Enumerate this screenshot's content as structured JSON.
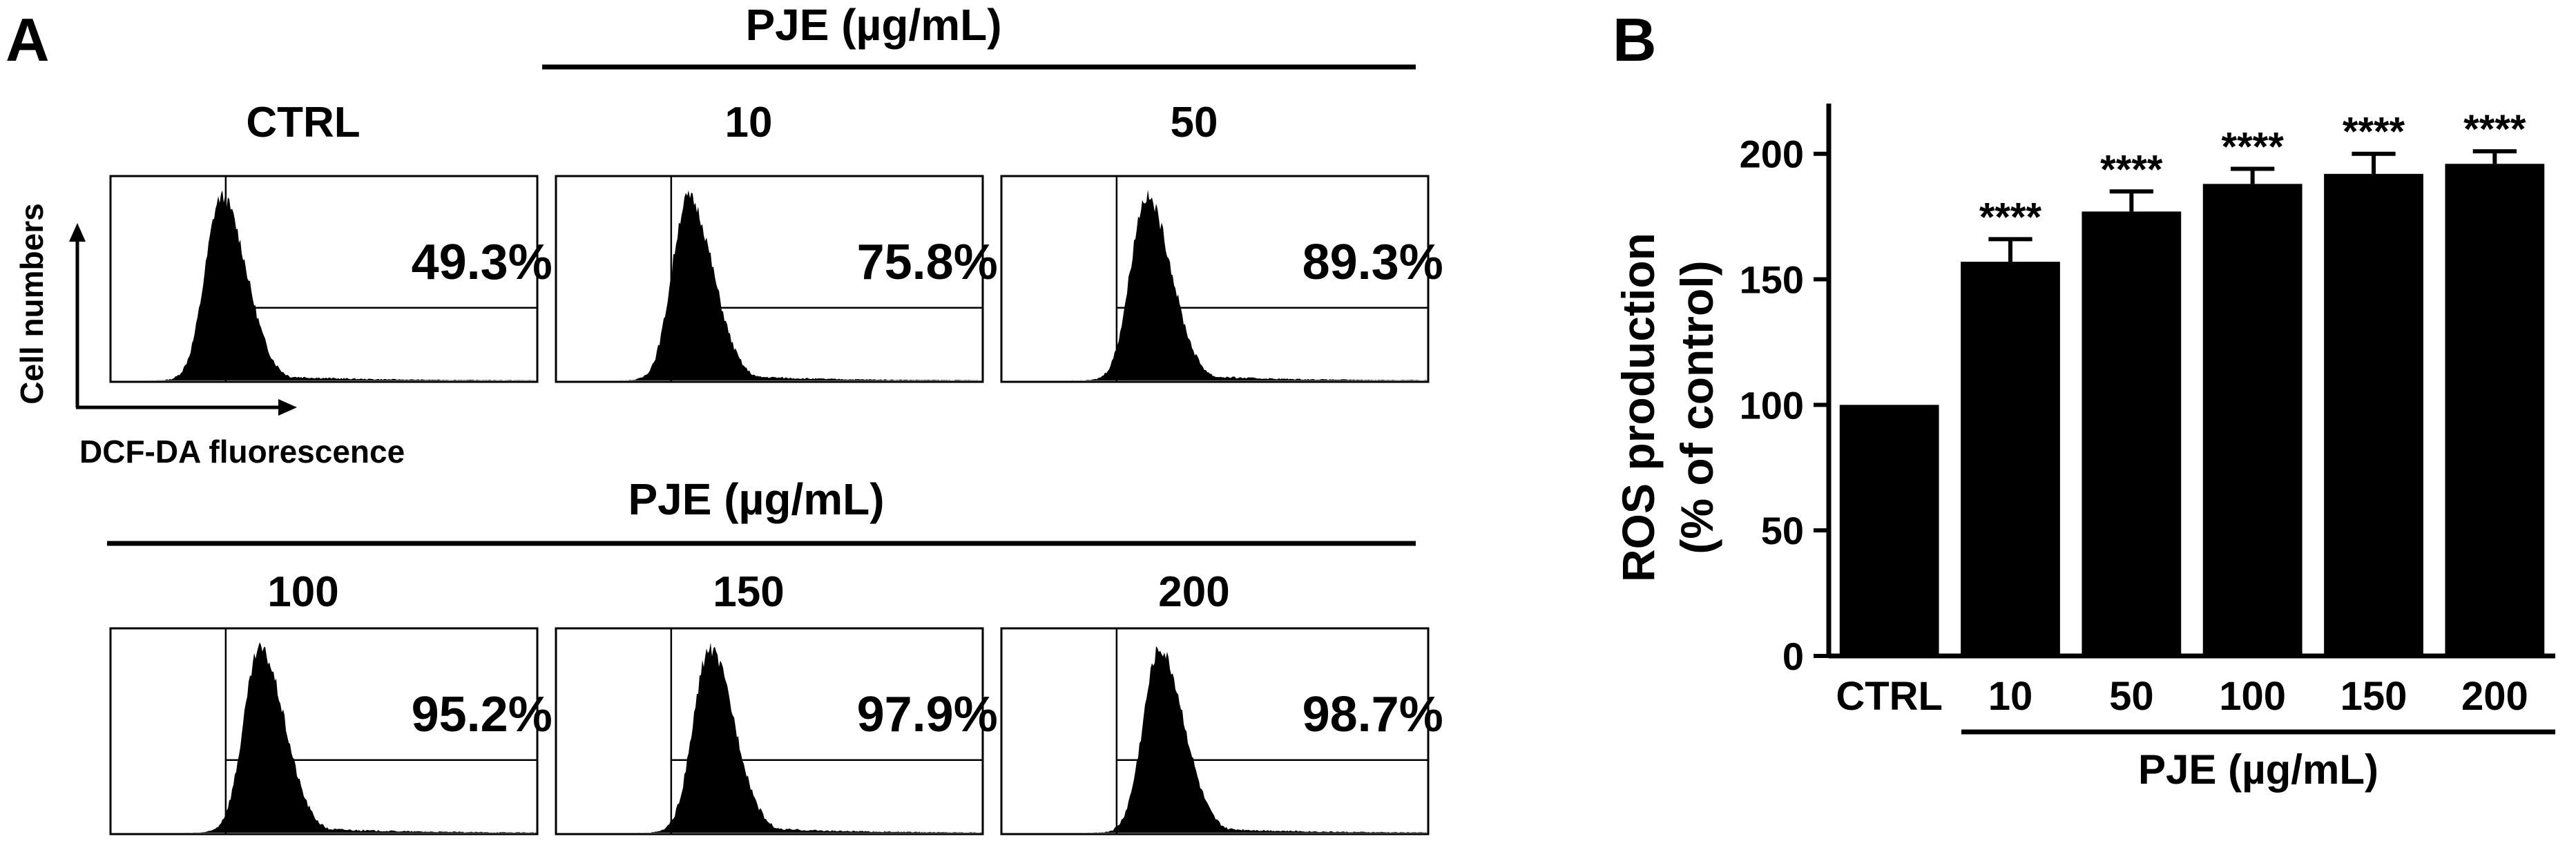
{
  "panel_a": {
    "letter": "A",
    "top_group_label": "PJE (µg/mL)",
    "bottom_group_label": "PJE (µg/mL)",
    "y_axis_label": "Cell numbers",
    "x_axis_label": "DCF-DA fluorescence",
    "histograms": [
      {
        "label": "CTRL",
        "percent": "49.3%",
        "peak": 0.26
      },
      {
        "label": "10",
        "percent": "75.8%",
        "peak": 0.31
      },
      {
        "label": "50",
        "percent": "89.3%",
        "peak": 0.34
      },
      {
        "label": "100",
        "percent": "95.2%",
        "peak": 0.35
      },
      {
        "label": "150",
        "percent": "97.9%",
        "peak": 0.36
      },
      {
        "label": "200",
        "percent": "98.7%",
        "peak": 0.37
      }
    ]
  },
  "panel_b": {
    "letter": "B",
    "group_label": "PJE (µg/mL)",
    "significance": "****"
  },
  "chart_data": {
    "type": "bar",
    "title": "",
    "xlabel": "PJE (µg/mL)",
    "ylabel": "ROS production (% of control)",
    "ylabel_line1": "ROS production",
    "ylabel_line2": "(% of control)",
    "categories": [
      "CTRL",
      "10",
      "50",
      "100",
      "150",
      "200"
    ],
    "values": [
      100,
      157,
      177,
      188,
      192,
      196
    ],
    "errors": [
      0,
      9,
      8,
      6,
      8,
      5
    ],
    "significance": [
      "",
      "****",
      "****",
      "****",
      "****",
      "****"
    ],
    "ylim": [
      0,
      220
    ],
    "yticks": [
      0,
      50,
      100,
      150,
      200
    ],
    "bar_color": "#000000"
  }
}
